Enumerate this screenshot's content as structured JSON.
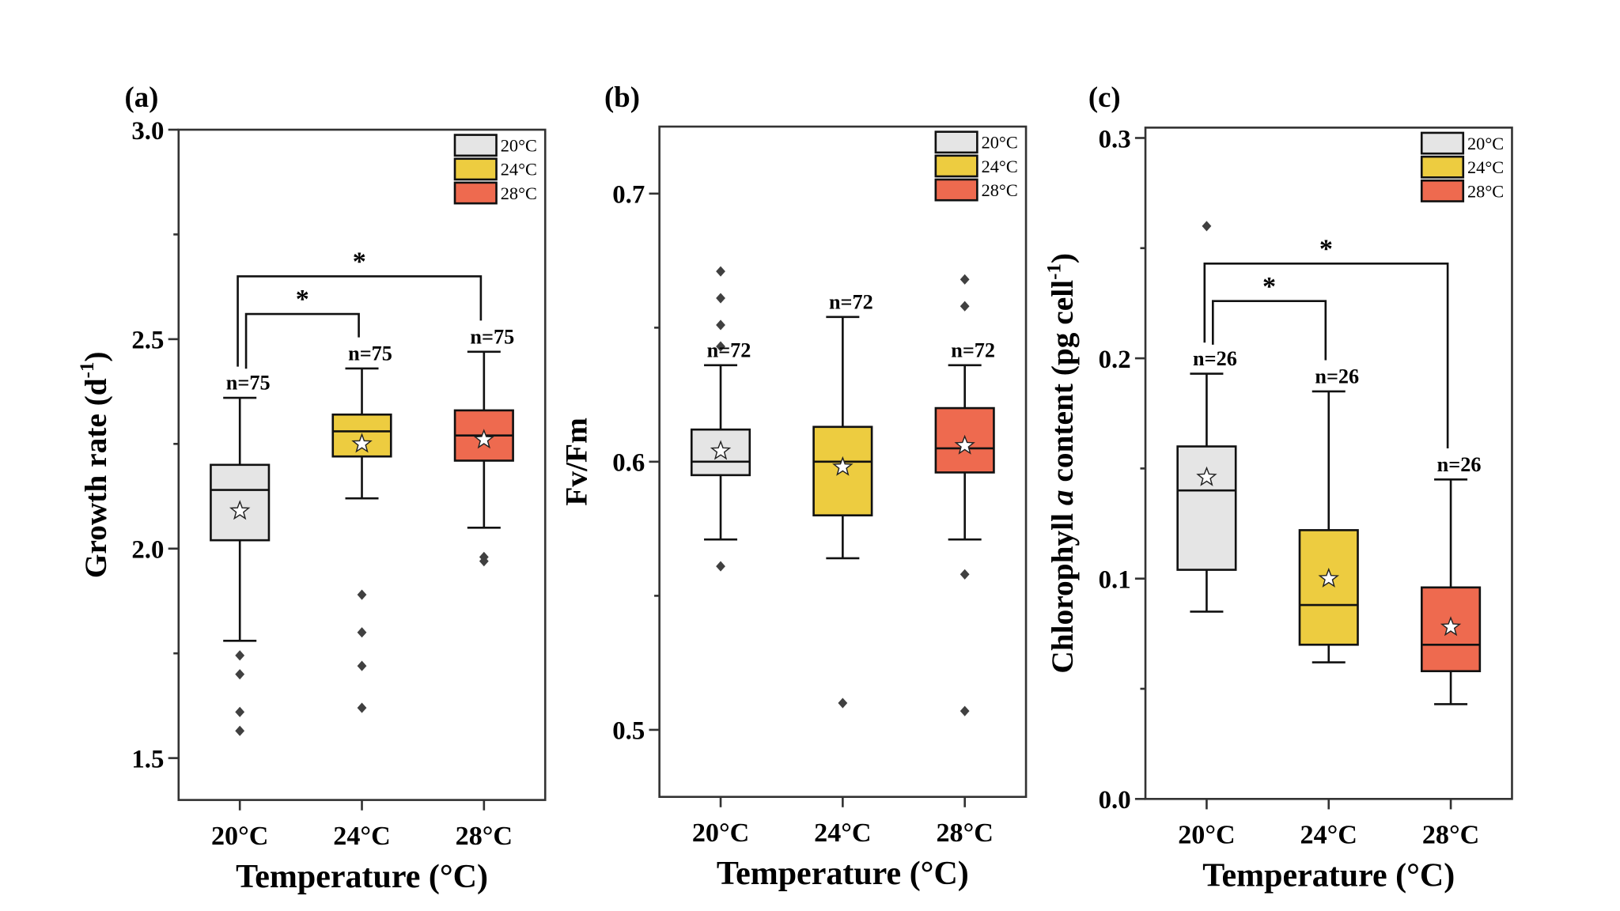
{
  "colors": {
    "20°C": "#e5e5e5",
    "24°C": "#edcc40",
    "28°C": "#ee6a4f",
    "outlier": "#404040",
    "axis": "#333333"
  },
  "chart_data": [
    {
      "type": "box",
      "panel_label": "(a)",
      "xlabel": "Temperature (°C)",
      "ylabel": "Growth rate (d",
      "ylabel_sup": "-1",
      "ylabel_end": ")",
      "ylim": [
        1.4,
        3.0
      ],
      "yticks": [
        1.5,
        2.0,
        2.5,
        3.0
      ],
      "ytick_labels": [
        "1.5",
        "2.0",
        "2.5",
        "3.0"
      ],
      "minor_yticks": [
        1.75,
        2.25,
        2.75
      ],
      "categories": [
        "20°C",
        "24°C",
        "28°C"
      ],
      "legend": [
        "20°C",
        "24°C",
        "28°C"
      ],
      "legend_position": "top-right",
      "boxes": [
        {
          "n_label": "n=75",
          "whisker_high": 2.36,
          "q3": 2.2,
          "median": 2.14,
          "q1": 2.02,
          "whisker_low": 1.78,
          "mean": 2.09,
          "outliers": [
            1.745,
            1.7,
            1.61,
            1.565
          ]
        },
        {
          "n_label": "n=75",
          "whisker_high": 2.43,
          "q3": 2.32,
          "median": 2.28,
          "q1": 2.22,
          "whisker_low": 2.12,
          "mean": 2.25,
          "outliers": [
            1.89,
            1.8,
            1.72,
            1.62
          ]
        },
        {
          "n_label": "n=75",
          "whisker_high": 2.47,
          "q3": 2.33,
          "median": 2.27,
          "q1": 2.21,
          "whisker_low": 2.05,
          "mean": 2.26,
          "outliers": [
            1.98,
            1.97
          ]
        }
      ],
      "significance": [
        {
          "from": 0,
          "to": 2,
          "level": 2.65,
          "label": "*"
        },
        {
          "from": 0,
          "to": 1,
          "level": 2.56,
          "label": "*"
        }
      ]
    },
    {
      "type": "box",
      "panel_label": "(b)",
      "xlabel": "Temperature (°C)",
      "ylabel": "Fv/Fm",
      "ylabel_sup": "",
      "ylabel_end": "",
      "ylim": [
        0.475,
        0.725
      ],
      "yticks": [
        0.5,
        0.6,
        0.7
      ],
      "ytick_labels": [
        "0.5",
        "0.6",
        "0.7"
      ],
      "minor_yticks": [
        0.55,
        0.65
      ],
      "categories": [
        "20°C",
        "24°C",
        "28°C"
      ],
      "legend": [
        "20°C",
        "24°C",
        "28°C"
      ],
      "legend_position": "top-right",
      "boxes": [
        {
          "n_label": "n=72",
          "whisker_high": 0.636,
          "q3": 0.612,
          "median": 0.6,
          "q1": 0.595,
          "whisker_low": 0.571,
          "mean": 0.604,
          "outliers": [
            0.671,
            0.661,
            0.651,
            0.643,
            0.561
          ]
        },
        {
          "n_label": "n=72",
          "whisker_high": 0.654,
          "q3": 0.613,
          "median": 0.6,
          "q1": 0.58,
          "whisker_low": 0.564,
          "mean": 0.598,
          "outliers": [
            0.51
          ]
        },
        {
          "n_label": "n=72",
          "whisker_high": 0.636,
          "q3": 0.62,
          "median": 0.605,
          "q1": 0.596,
          "whisker_low": 0.571,
          "mean": 0.606,
          "outliers": [
            0.668,
            0.658,
            0.558,
            0.507
          ]
        }
      ],
      "significance": []
    },
    {
      "type": "box",
      "panel_label": "(c)",
      "xlabel": "Temperature (°C)",
      "ylabel": "Chlorophyll a content (pg cell",
      "ylabel_sup": "-1",
      "ylabel_end": ")",
      "ylim": [
        0.0,
        0.3047
      ],
      "yticks": [
        0.0,
        0.1,
        0.2,
        0.3
      ],
      "ytick_labels": [
        "0.0",
        "0.1",
        "0.2",
        "0.3"
      ],
      "minor_yticks": [
        0.05,
        0.15,
        0.25
      ],
      "categories": [
        "20°C",
        "24°C",
        "28°C"
      ],
      "legend": [
        "20°C",
        "24°C",
        "28°C"
      ],
      "legend_position": "top-right",
      "boxes": [
        {
          "n_label": "n=26",
          "whisker_high": 0.193,
          "q3": 0.16,
          "median": 0.14,
          "q1": 0.104,
          "whisker_low": 0.085,
          "mean": 0.146,
          "outliers": [
            0.26
          ]
        },
        {
          "n_label": "n=26",
          "whisker_high": 0.185,
          "q3": 0.122,
          "median": 0.088,
          "q1": 0.07,
          "whisker_low": 0.062,
          "mean": 0.1,
          "outliers": []
        },
        {
          "n_label": "n=26",
          "whisker_high": 0.145,
          "q3": 0.096,
          "median": 0.07,
          "q1": 0.058,
          "whisker_low": 0.043,
          "mean": 0.078,
          "outliers": []
        }
      ],
      "significance": [
        {
          "from": 0,
          "to": 2,
          "level": 0.243,
          "label": "*"
        },
        {
          "from": 0,
          "to": 1,
          "level": 0.226,
          "label": "*"
        }
      ]
    }
  ]
}
